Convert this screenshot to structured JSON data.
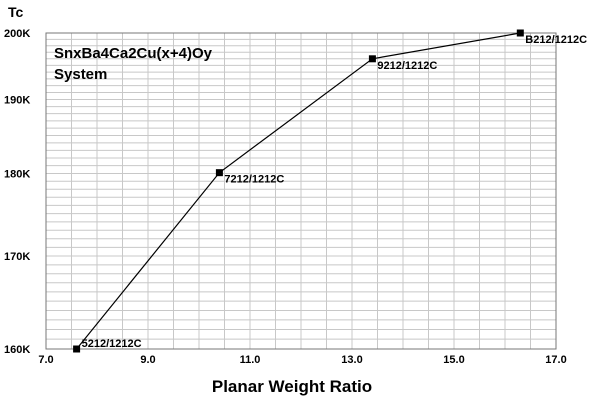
{
  "chart_data": {
    "type": "line",
    "title_lines": [
      "SnxBa4Ca2Cu(x+4)Oy",
      "System"
    ],
    "xlabel": "Planar Weight Ratio",
    "ylabel": "Tc",
    "xlim": [
      7.0,
      17.0
    ],
    "x_ticks": [
      7.0,
      9.0,
      11.0,
      13.0,
      15.0,
      17.0
    ],
    "x_tick_labels": [
      "7.0",
      "9.0",
      "11.0",
      "13.0",
      "15.0",
      "17.0"
    ],
    "y_scale": "reciprocal",
    "ylim": [
      160,
      200
    ],
    "y_ticks": [
      160,
      170,
      180,
      190,
      200
    ],
    "y_tick_labels": [
      "160K",
      "170K",
      "180K",
      "190K",
      "200K"
    ],
    "grid": true,
    "series": [
      {
        "x": [
          7.6,
          10.4,
          13.4,
          16.3
        ],
        "y": [
          160,
          180.1,
          196,
          200
        ],
        "labels": [
          "5212/1212C",
          "7212/1212C",
          "9212/1212C",
          "B212/1212C"
        ]
      }
    ]
  }
}
